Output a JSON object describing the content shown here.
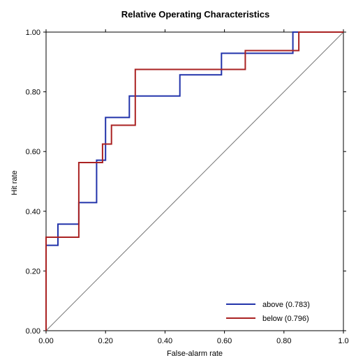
{
  "chart_data": {
    "type": "line",
    "title": "Relative Operating Characteristics",
    "xlabel": "False-alarm rate",
    "ylabel": "Hit rate",
    "xlim": [
      0,
      1
    ],
    "ylim": [
      0,
      1
    ],
    "x_ticks": [
      "0.00",
      "0.20",
      "0.40",
      "0.60",
      "0.80",
      "1.0"
    ],
    "y_ticks": [
      "0.00",
      "0.20",
      "0.40",
      "0.60",
      "0.80",
      "1.00"
    ],
    "x_tick_values": [
      0,
      0.2,
      0.4,
      0.6,
      0.8,
      1.0
    ],
    "y_tick_values": [
      0,
      0.2,
      0.4,
      0.6,
      0.8,
      1.0
    ],
    "grid": false,
    "legend_position": "bottom-right",
    "diagonal_reference": true,
    "series": [
      {
        "name": "above (0.783)",
        "color": "#2233aa",
        "x": [
          0,
          0,
          0.04,
          0.04,
          0.11,
          0.11,
          0.17,
          0.17,
          0.2,
          0.2,
          0.28,
          0.28,
          0.45,
          0.45,
          0.59,
          0.59,
          0.83,
          0.83,
          1.0
        ],
        "y": [
          0,
          0.286,
          0.286,
          0.357,
          0.357,
          0.429,
          0.429,
          0.571,
          0.571,
          0.714,
          0.714,
          0.786,
          0.786,
          0.857,
          0.857,
          0.929,
          0.929,
          1.0,
          1.0
        ]
      },
      {
        "name": "below (0.796)",
        "color": "#aa2222",
        "x": [
          0,
          0,
          0.11,
          0.11,
          0.19,
          0.19,
          0.22,
          0.22,
          0.3,
          0.3,
          0.67,
          0.67,
          0.85,
          0.85,
          1.0
        ],
        "y": [
          0,
          0.313,
          0.313,
          0.563,
          0.563,
          0.625,
          0.625,
          0.688,
          0.688,
          0.875,
          0.875,
          0.938,
          0.938,
          1.0,
          1.0
        ]
      }
    ]
  }
}
